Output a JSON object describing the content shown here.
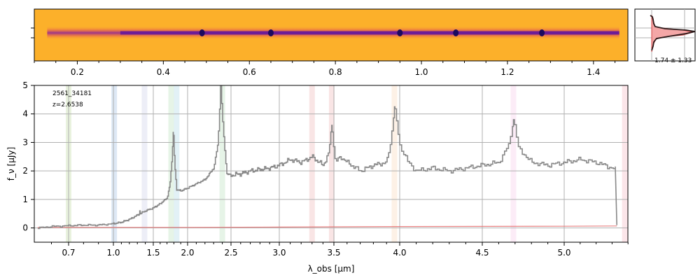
{
  "chart_data": [
    {
      "type": "heatmap",
      "panel": "2d-spectrum",
      "x_ticks": [
        "0.2",
        "0.4",
        "0.6",
        "0.8",
        "1.0",
        "1.2",
        "1.4"
      ],
      "x_tick_values": [
        0.2,
        0.4,
        0.6,
        0.8,
        1.0,
        1.2,
        1.4
      ],
      "xlim": [
        0.1,
        1.48
      ],
      "trace_extent": [
        0.13,
        1.46
      ],
      "bright_knots_x": [
        0.49,
        0.65,
        0.95,
        1.08,
        1.28
      ],
      "colormap": "plasma_r",
      "background_color": "#fcb02a"
    },
    {
      "type": "line",
      "panel": "profile",
      "annotation": "1.74 ± 1.33"
    },
    {
      "type": "line",
      "panel": "1d-spectrum",
      "annotations": [
        "2561_34181",
        "z=2.6538"
      ],
      "xlabel": "λ_obs [μm]",
      "ylabel": "f_ν [μJy]",
      "x_ticks": [
        "0.7",
        "1.0",
        "1.5",
        "2.0",
        "2.5",
        "3.0",
        "3.5",
        "4.0",
        "4.5",
        "5.0"
      ],
      "x_tick_values": [
        0.7,
        1.0,
        1.5,
        2.0,
        2.5,
        3.0,
        3.5,
        4.0,
        4.5,
        5.0
      ],
      "x_scale": "sqrt-like (prism)",
      "y_ticks": [
        "0",
        "1",
        "2",
        "3",
        "4",
        "5"
      ],
      "ylim": [
        -0.5,
        5.0
      ],
      "grid": true,
      "emission_lines": [
        {
          "x": 1.33,
          "y": 0.6
        },
        {
          "x": 1.79,
          "y": 3.35
        },
        {
          "x": 2.38,
          "y": 5.0
        },
        {
          "x": 3.48,
          "y": 3.6
        },
        {
          "x": 3.96,
          "y": 4.25
        },
        {
          "x": 4.69,
          "y": 3.8
        }
      ],
      "series": [
        {
          "color": "#888888",
          "x": [
            0.52,
            0.6,
            0.7,
            0.8,
            0.9,
            1.0,
            1.1,
            1.2,
            1.3,
            1.4,
            1.5,
            1.6,
            1.7,
            1.74,
            1.77,
            1.79,
            1.81,
            1.84,
            1.9,
            2.0,
            2.1,
            2.2,
            2.3,
            2.35,
            2.38,
            2.41,
            2.45,
            2.5,
            2.6,
            2.7,
            2.8,
            2.9,
            3.0,
            3.1,
            3.2,
            3.3,
            3.4,
            3.45,
            3.48,
            3.51,
            3.55,
            3.6,
            3.7,
            3.8,
            3.9,
            3.93,
            3.96,
            4.0,
            4.05,
            4.1,
            4.2,
            4.3,
            4.4,
            4.5,
            4.6,
            4.66,
            4.69,
            4.72,
            4.8,
            4.9,
            5.0,
            5.1,
            5.2,
            5.3,
            5.33
          ],
          "y": [
            0.0,
            0.05,
            0.08,
            0.1,
            0.1,
            0.15,
            0.2,
            0.3,
            0.45,
            0.6,
            0.7,
            0.85,
            1.05,
            1.5,
            2.4,
            3.35,
            2.2,
            1.35,
            1.3,
            1.4,
            1.55,
            1.7,
            2.1,
            3.0,
            5.0,
            3.4,
            1.9,
            1.85,
            1.9,
            2.0,
            2.05,
            2.1,
            2.2,
            2.4,
            2.3,
            2.5,
            2.2,
            2.6,
            3.6,
            2.3,
            2.5,
            2.3,
            2.0,
            2.2,
            2.3,
            3.0,
            4.25,
            2.9,
            2.3,
            2.0,
            2.1,
            2.0,
            2.1,
            2.2,
            2.3,
            2.9,
            3.8,
            2.8,
            2.3,
            2.2,
            2.3,
            2.4,
            2.3,
            2.1,
            2.05
          ]
        },
        {
          "color": "#e57373",
          "x": [
            0.52,
            1.0,
            2.0,
            3.0,
            4.0,
            5.0,
            5.33
          ],
          "y": [
            0.02,
            0.02,
            0.02,
            0.03,
            0.05,
            0.06,
            0.07
          ]
        }
      ],
      "shaded_bands": [
        {
          "x": 0.7,
          "color": "#cfe3b5"
        },
        {
          "x": 1.01,
          "color": "#b3cde8"
        },
        {
          "x": 1.39,
          "color": "#d7d9ee"
        },
        {
          "x": 1.76,
          "color": "#c8e6c9"
        },
        {
          "x": 1.84,
          "color": "#bfe0ea"
        },
        {
          "x": 2.4,
          "color": "#c8e6c9"
        },
        {
          "x": 3.3,
          "color": "#f2c6c6"
        },
        {
          "x": 3.48,
          "color": "#f2c6c6"
        },
        {
          "x": 3.96,
          "color": "#fbe0c7"
        },
        {
          "x": 4.69,
          "color": "#f8d4ee"
        },
        {
          "x": 5.38,
          "color": "#f6c6cf"
        }
      ]
    }
  ]
}
